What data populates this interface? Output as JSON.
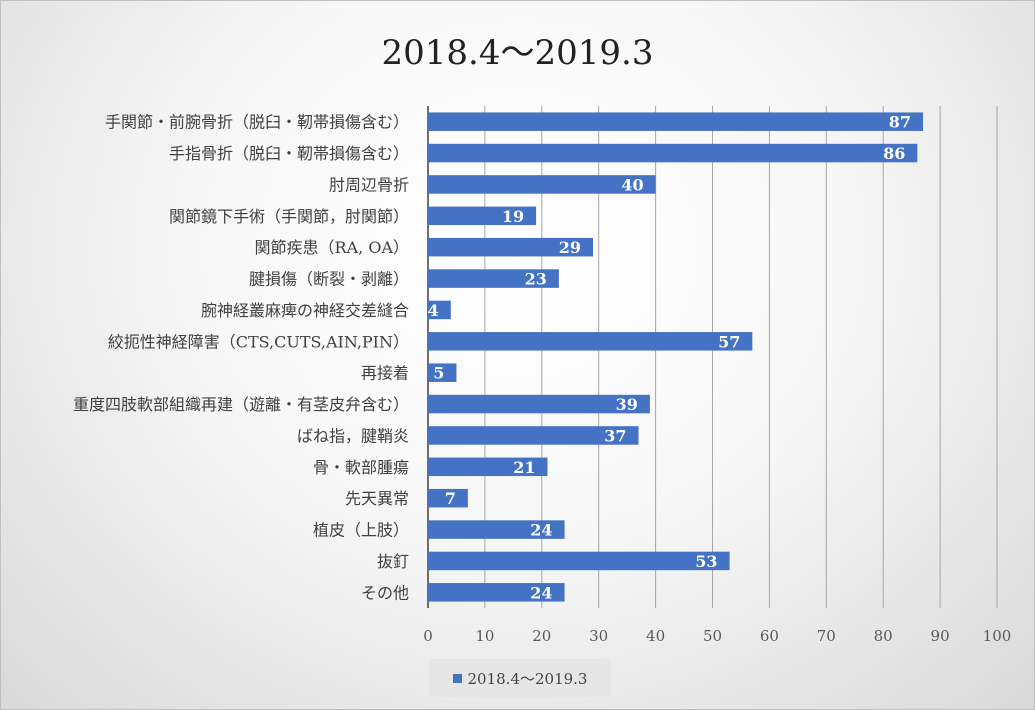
{
  "chart_data": {
    "type": "bar",
    "orientation": "horizontal",
    "title": "2018.4～2019.3",
    "categories": [
      "手関節・前腕骨折（脱臼・靭帯損傷含む）",
      "手指骨折（脱臼・靭帯損傷含む）",
      "肘周辺骨折",
      "関節鏡下手術（手関節，肘関節）",
      "関節疾患（RA, OA）",
      "腱損傷（断裂・剥離）",
      "腕神経叢麻痺の神経交差縫合",
      "絞扼性神経障害（CTS,CUTS,AIN,PIN）",
      "再接着",
      "重度四肢軟部組織再建（遊離・有茎皮弁含む）",
      "ばね指，腱鞘炎",
      "骨・軟部腫瘍",
      "先天異常",
      "植皮（上肢）",
      "抜釘",
      "その他"
    ],
    "series": [
      {
        "name": "2018.4～2019.3",
        "values": [
          87,
          86,
          40,
          19,
          29,
          23,
          4,
          57,
          5,
          39,
          37,
          21,
          7,
          24,
          53,
          24
        ]
      }
    ],
    "xlim": [
      0,
      100
    ],
    "xticks": [
      "0",
      "10",
      "20",
      "30",
      "40",
      "50",
      "60",
      "70",
      "80",
      "90",
      "100"
    ],
    "grid": "vertical",
    "data_labels": true,
    "legend_position": "bottom",
    "bar_color": "#4472c4",
    "grid_color": "#a6a6a6",
    "label_color": "#ffffff"
  }
}
